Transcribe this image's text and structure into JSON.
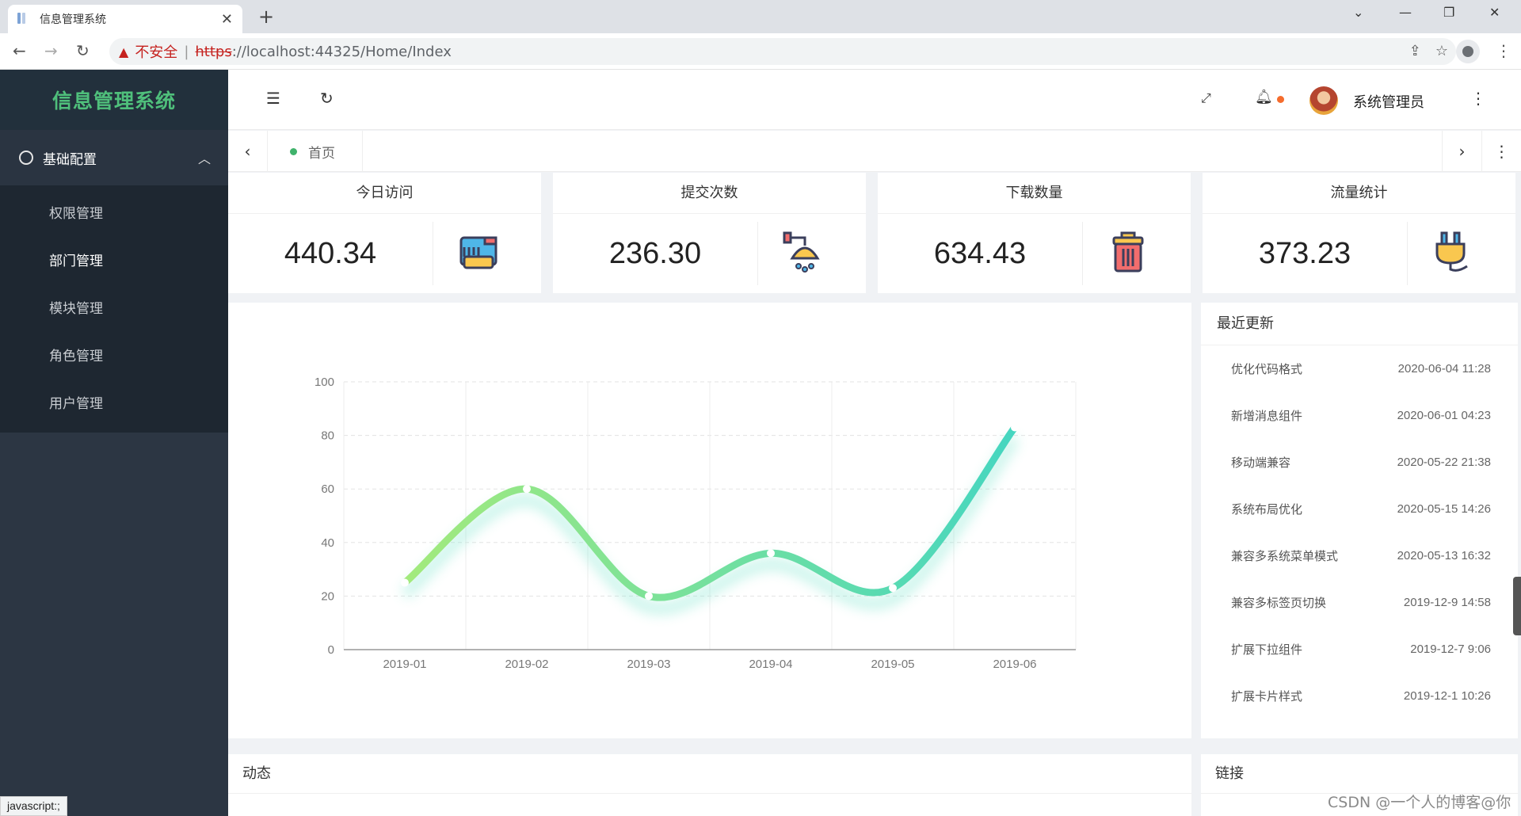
{
  "browser": {
    "tab_title": "信息管理系统",
    "tab_close": "✕",
    "new_tab": "+",
    "insecure_label": "不安全",
    "url_scheme": "https",
    "url_rest": "://localhost:44325/Home/Index"
  },
  "sidebar": {
    "logo": "信息管理系统",
    "group_label": "基础配置",
    "items": [
      {
        "label": "权限管理",
        "active": false
      },
      {
        "label": "部门管理",
        "active": true
      },
      {
        "label": "模块管理",
        "active": false
      },
      {
        "label": "角色管理",
        "active": false
      },
      {
        "label": "用户管理",
        "active": false
      }
    ]
  },
  "header": {
    "username": "系统管理员"
  },
  "tabs": {
    "home": "首页"
  },
  "stats": [
    {
      "title": "今日访问",
      "value": "440.34",
      "icon": "paint-bucket-icon"
    },
    {
      "title": "提交次数",
      "value": "236.30",
      "icon": "shower-icon"
    },
    {
      "title": "下载数量",
      "value": "634.43",
      "icon": "trash-can-icon"
    },
    {
      "title": "流量统计",
      "value": "373.23",
      "icon": "plug-icon"
    }
  ],
  "chart_data": {
    "type": "line",
    "categories": [
      "2019-01",
      "2019-02",
      "2019-03",
      "2019-04",
      "2019-05",
      "2019-06"
    ],
    "values": [
      25,
      60,
      20,
      36,
      23,
      83
    ],
    "ylim": [
      0,
      100
    ],
    "yticks": [
      0,
      20,
      40,
      60,
      80,
      100
    ],
    "smooth": true,
    "grid": true,
    "colors": [
      "#9de47f",
      "#4ed9b8"
    ]
  },
  "recent": {
    "title": "最近更新",
    "items": [
      {
        "name": "优化代码格式",
        "date": "2020-06-04 11:28"
      },
      {
        "name": "新增消息组件",
        "date": "2020-06-01 04:23"
      },
      {
        "name": "移动端兼容",
        "date": "2020-05-22 21:38"
      },
      {
        "name": "系统布局优化",
        "date": "2020-05-15 14:26"
      },
      {
        "name": "兼容多系统菜单模式",
        "date": "2020-05-13 16:32"
      },
      {
        "name": "兼容多标签页切换",
        "date": "2019-12-9 14:58"
      },
      {
        "name": "扩展下拉组件",
        "date": "2019-12-7 9:06"
      },
      {
        "name": "扩展卡片样式",
        "date": "2019-12-1 10:26"
      }
    ]
  },
  "bottom": {
    "left_title": "动态",
    "right_title": "链接"
  },
  "statusbar": "javascript:;",
  "watermark": "CSDN @一个人的博客@你"
}
